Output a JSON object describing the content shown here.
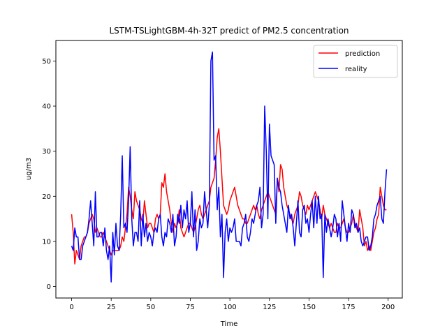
{
  "chart_data": {
    "type": "line",
    "title": "LSTM-TSLightGBM-4h-32T predict of PM2.5 concentration",
    "xlabel": "Time",
    "ylabel": "ug/m3",
    "xlim": [
      -9.95,
      208.95
    ],
    "ylim": [
      -2.55,
      54.55
    ],
    "xticks": [
      0,
      25,
      50,
      75,
      100,
      125,
      150,
      175,
      200
    ],
    "yticks": [
      0,
      10,
      20,
      30,
      40,
      50
    ],
    "grid": false,
    "legend_position": "top-right",
    "x": [
      0,
      1,
      2,
      3,
      4,
      5,
      6,
      7,
      8,
      9,
      10,
      11,
      12,
      13,
      14,
      15,
      16,
      17,
      18,
      19,
      20,
      21,
      22,
      23,
      24,
      25,
      26,
      27,
      28,
      29,
      30,
      31,
      32,
      33,
      34,
      35,
      36,
      37,
      38,
      39,
      40,
      41,
      42,
      43,
      44,
      45,
      46,
      47,
      48,
      49,
      50,
      51,
      52,
      53,
      54,
      55,
      56,
      57,
      58,
      59,
      60,
      61,
      62,
      63,
      64,
      65,
      66,
      67,
      68,
      69,
      70,
      71,
      72,
      73,
      74,
      75,
      76,
      77,
      78,
      79,
      80,
      81,
      82,
      83,
      84,
      85,
      86,
      87,
      88,
      89,
      90,
      91,
      92,
      93,
      94,
      95,
      96,
      97,
      98,
      99,
      100,
      101,
      102,
      103,
      104,
      105,
      106,
      107,
      108,
      109,
      110,
      111,
      112,
      113,
      114,
      115,
      116,
      117,
      118,
      119,
      120,
      121,
      122,
      123,
      124,
      125,
      126,
      127,
      128,
      129,
      130,
      131,
      132,
      133,
      134,
      135,
      136,
      137,
      138,
      139,
      140,
      141,
      142,
      143,
      144,
      145,
      146,
      147,
      148,
      149,
      150,
      151,
      152,
      153,
      154,
      155,
      156,
      157,
      158,
      159,
      160,
      161,
      162,
      163,
      164,
      165,
      166,
      167,
      168,
      169,
      170,
      171,
      172,
      173,
      174,
      175,
      176,
      177,
      178,
      179,
      180,
      181,
      182,
      183,
      184,
      185,
      186,
      187,
      188,
      189,
      190,
      191,
      192,
      193,
      194,
      195,
      196,
      197,
      198,
      199
    ],
    "series": [
      {
        "name": "prediction",
        "color": "#ff0000",
        "values": [
          16,
          12,
          5,
          8,
          7,
          6,
          9,
          10,
          11,
          11,
          12,
          14,
          15,
          16,
          15,
          12,
          13,
          12,
          11,
          11,
          12,
          11,
          10,
          9,
          8,
          7,
          8,
          8,
          8,
          8,
          8,
          9,
          11,
          10,
          13,
          16,
          22,
          20,
          17,
          15,
          21,
          19,
          18,
          17,
          15,
          14,
          19,
          16,
          13,
          14,
          14,
          13,
          12,
          15,
          16,
          15,
          16,
          23,
          22,
          25,
          21,
          19,
          17,
          14,
          12,
          14,
          13,
          14,
          17,
          13,
          12,
          11,
          12,
          13,
          14,
          14,
          13,
          12,
          13,
          15,
          17,
          18,
          16,
          15,
          16,
          17,
          18,
          19,
          22,
          23,
          24,
          28,
          33,
          35,
          30,
          24,
          18,
          17,
          16,
          17,
          19,
          20,
          21,
          22,
          20,
          18,
          17,
          16,
          15,
          15,
          14,
          14,
          15,
          16,
          17,
          18,
          17,
          18,
          16,
          15,
          17,
          18,
          19,
          20,
          21,
          20,
          19,
          18,
          17,
          16,
          24,
          21,
          27,
          26,
          22,
          20,
          18,
          17,
          16,
          15,
          14,
          16,
          17,
          18,
          21,
          20,
          18,
          17,
          16,
          18,
          17,
          18,
          19,
          20,
          21,
          20,
          19,
          17,
          15,
          18,
          16,
          15,
          14,
          13,
          14,
          13,
          12,
          12,
          14,
          13,
          13,
          14,
          15,
          13,
          12,
          12,
          13,
          14,
          16,
          14,
          13,
          12,
          17,
          15,
          13,
          9,
          10,
          8,
          9,
          8,
          10,
          12,
          13,
          15,
          16,
          22,
          20,
          18,
          17,
          17
        ]
      },
      {
        "name": "reality",
        "color": "#0000ff",
        "values": [
          9,
          8,
          13,
          11,
          11,
          6,
          6,
          9,
          10,
          11,
          12,
          15,
          19,
          14,
          9,
          21,
          11,
          11,
          12,
          12,
          9,
          13,
          8,
          6,
          9,
          1,
          12,
          7,
          14,
          9,
          8,
          16,
          29,
          13,
          14,
          12,
          19,
          31,
          15,
          9,
          12,
          12,
          10,
          19,
          9,
          16,
          11,
          14,
          10,
          12,
          11,
          9,
          12,
          13,
          12,
          15,
          16,
          11,
          9,
          12,
          11,
          15,
          14,
          12,
          16,
          9,
          11,
          16,
          14,
          18,
          13,
          17,
          15,
          19,
          12,
          14,
          21,
          11,
          17,
          8,
          10,
          15,
          13,
          14,
          21,
          17,
          13,
          18,
          50,
          52,
          28,
          29,
          17,
          22,
          11,
          16,
          2,
          12,
          15,
          10,
          13,
          12,
          13,
          15,
          10,
          10,
          10,
          9,
          13,
          14,
          16,
          11,
          10,
          12,
          15,
          14,
          16,
          18,
          19,
          22,
          13,
          16,
          40,
          30,
          15,
          36,
          29,
          28,
          27,
          14,
          24,
          22,
          21,
          18,
          16,
          14,
          12,
          18,
          15,
          16,
          13,
          9,
          14,
          19,
          12,
          11,
          17,
          18,
          14,
          15,
          12,
          16,
          19,
          13,
          20,
          14,
          20,
          15,
          16,
          2,
          16,
          12,
          15,
          13,
          11,
          13,
          16,
          15,
          11,
          14,
          10,
          19,
          16,
          13,
          10,
          14,
          12,
          17,
          16,
          13,
          14,
          12,
          13,
          10,
          9,
          10,
          11,
          11,
          8,
          9,
          11,
          15,
          16,
          18,
          19,
          20,
          15,
          14,
          21,
          26
        ]
      }
    ]
  }
}
